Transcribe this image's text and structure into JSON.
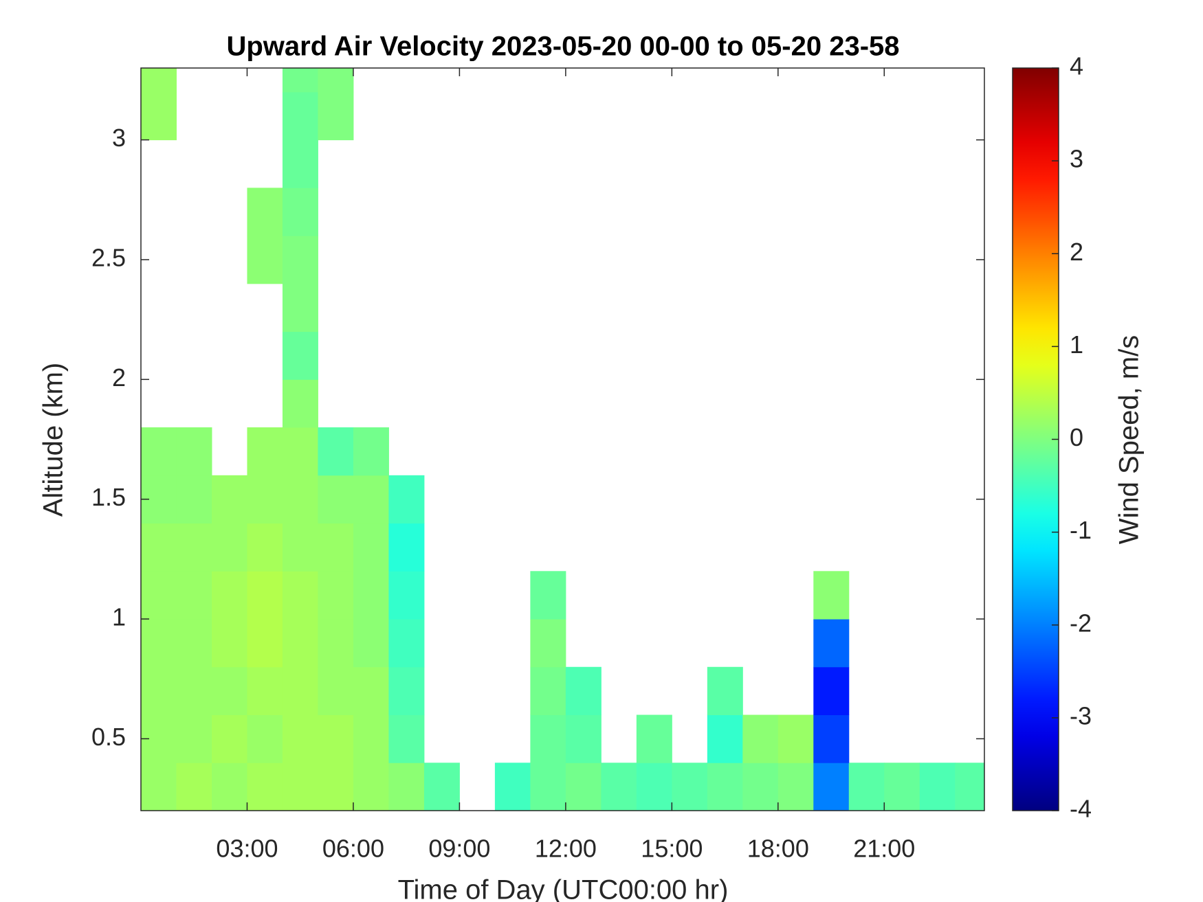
{
  "chart_data": {
    "type": "heatmap",
    "title": "Upward Air Velocity 2023-05-20 00-00 to 05-20 23-58",
    "x_label": "Time of Day (UTC00:00 hr)",
    "y_label": "Altitude (km)",
    "colorbar_label": "Wind Speed, m/s",
    "xbins": [
      0,
      1,
      2,
      3,
      4,
      5,
      6,
      7,
      8,
      9,
      10,
      11,
      12,
      13,
      14,
      15,
      16,
      17,
      18,
      19,
      20,
      21,
      22,
      23,
      24
    ],
    "ybins": [
      0.2,
      0.4,
      0.6,
      0.8,
      1.0,
      1.2,
      1.4,
      1.6,
      1.8,
      2.0,
      2.2,
      2.4,
      2.6,
      2.8,
      3.0,
      3.2,
      3.3
    ],
    "xlim": [
      0,
      23.83
    ],
    "ylim": [
      0.2,
      3.3
    ],
    "xticks": [
      {
        "value": 3,
        "label": "03:00"
      },
      {
        "value": 6,
        "label": "06:00"
      },
      {
        "value": 9,
        "label": "09:00"
      },
      {
        "value": 12,
        "label": "12:00"
      },
      {
        "value": 15,
        "label": "15:00"
      },
      {
        "value": 18,
        "label": "18:00"
      },
      {
        "value": 21,
        "label": "21:00"
      }
    ],
    "yticks": [
      0.5,
      1,
      1.5,
      2,
      2.5,
      3
    ],
    "clim": [
      -4,
      4
    ],
    "cticks": [
      -4,
      -3,
      -2,
      -1,
      0,
      1,
      2,
      3,
      4
    ],
    "colormap": "jet",
    "values": [
      [
        0.2,
        0.3,
        0.2,
        0.3,
        0.3,
        0.3,
        0.2,
        0.1,
        -0.3,
        null,
        -0.5,
        -0.2,
        -0.1,
        -0.3,
        -0.4,
        -0.3,
        -0.2,
        -0.1,
        0,
        -2,
        -0.3,
        -0.2,
        -0.4,
        -0.3
      ],
      [
        0.2,
        0.2,
        0.3,
        0.2,
        0.3,
        0.3,
        0.2,
        -0.3,
        null,
        null,
        null,
        -0.2,
        -0.3,
        null,
        -0.2,
        null,
        -0.6,
        0.1,
        0.2,
        -2.5,
        null,
        null,
        null,
        null
      ],
      [
        0.2,
        0.2,
        0.2,
        0.3,
        0.3,
        0.2,
        0.2,
        -0.4,
        null,
        null,
        null,
        -0.1,
        -0.4,
        null,
        null,
        null,
        -0.3,
        null,
        null,
        -2.8,
        null,
        null,
        null,
        null
      ],
      [
        0.2,
        0.2,
        0.3,
        0.4,
        0.3,
        0.2,
        0.1,
        -0.5,
        null,
        null,
        null,
        0,
        null,
        null,
        null,
        null,
        null,
        null,
        null,
        -2.2,
        null,
        null,
        null,
        null
      ],
      [
        0.2,
        0.2,
        0.3,
        0.4,
        0.3,
        0.2,
        0.1,
        -0.6,
        null,
        null,
        null,
        -0.2,
        null,
        null,
        null,
        null,
        null,
        null,
        null,
        0.1,
        null,
        null,
        null,
        null
      ],
      [
        0.2,
        0.2,
        0.2,
        0.3,
        0.2,
        0.2,
        0.1,
        -0.7,
        null,
        null,
        null,
        null,
        null,
        null,
        null,
        null,
        null,
        null,
        null,
        null,
        null,
        null,
        null,
        null
      ],
      [
        0.1,
        0.1,
        0.2,
        0.2,
        0.2,
        0.1,
        0.1,
        -0.5,
        null,
        null,
        null,
        null,
        null,
        null,
        null,
        null,
        null,
        null,
        null,
        null,
        null,
        null,
        null,
        null
      ],
      [
        0.1,
        0.1,
        null,
        0.2,
        0.2,
        -0.3,
        -0.1,
        null,
        null,
        null,
        null,
        null,
        null,
        null,
        null,
        null,
        null,
        null,
        null,
        null,
        null,
        null,
        null,
        null
      ],
      [
        null,
        null,
        null,
        null,
        0.1,
        null,
        null,
        null,
        null,
        null,
        null,
        null,
        null,
        null,
        null,
        null,
        null,
        null,
        null,
        null,
        null,
        null,
        null,
        null
      ],
      [
        null,
        null,
        null,
        null,
        -0.2,
        null,
        null,
        null,
        null,
        null,
        null,
        null,
        null,
        null,
        null,
        null,
        null,
        null,
        null,
        null,
        null,
        null,
        null,
        null
      ],
      [
        null,
        null,
        null,
        null,
        0,
        null,
        null,
        null,
        null,
        null,
        null,
        null,
        null,
        null,
        null,
        null,
        null,
        null,
        null,
        null,
        null,
        null,
        null,
        null
      ],
      [
        null,
        null,
        null,
        0.1,
        0,
        null,
        null,
        null,
        null,
        null,
        null,
        null,
        null,
        null,
        null,
        null,
        null,
        null,
        null,
        null,
        null,
        null,
        null,
        null
      ],
      [
        null,
        null,
        null,
        0.1,
        -0.1,
        null,
        null,
        null,
        null,
        null,
        null,
        null,
        null,
        null,
        null,
        null,
        null,
        null,
        null,
        null,
        null,
        null,
        null,
        null
      ],
      [
        null,
        null,
        null,
        null,
        -0.2,
        null,
        null,
        null,
        null,
        null,
        null,
        null,
        null,
        null,
        null,
        null,
        null,
        null,
        null,
        null,
        null,
        null,
        null,
        null
      ],
      [
        0.2,
        null,
        null,
        null,
        -0.2,
        0,
        null,
        null,
        null,
        null,
        null,
        null,
        null,
        null,
        null,
        null,
        null,
        null,
        null,
        null,
        null,
        null,
        null,
        null
      ],
      [
        0.2,
        null,
        null,
        null,
        -0.1,
        0,
        null,
        null,
        null,
        null,
        null,
        null,
        null,
        null,
        null,
        null,
        null,
        null,
        null,
        null,
        null,
        null,
        null,
        null
      ]
    ]
  }
}
